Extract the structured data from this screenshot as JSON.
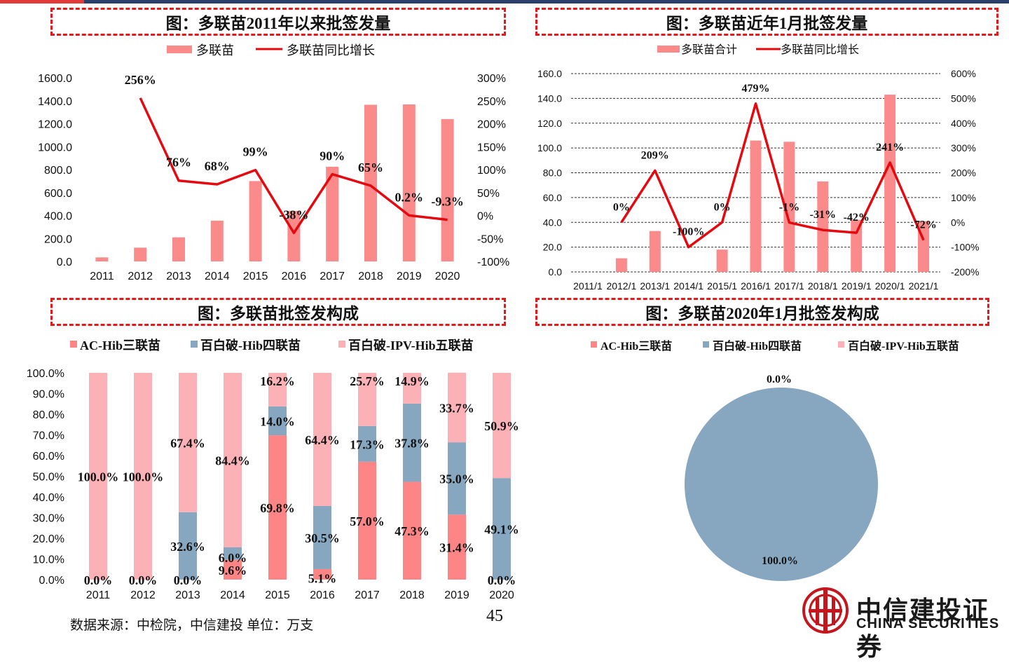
{
  "titles": {
    "c1": "图：多联苗2011年以来批签发量",
    "c2": "图：多联苗近年1月批签发量",
    "c3": "图：多联苗批签发构成",
    "c4": "图：多联苗2020年1月批签发构成"
  },
  "footer": {
    "source": "数据来源：中检院，中信建投 单位：万支",
    "page": "45",
    "logo_cn": "中信建投证券",
    "logo_en": "CHINA SECURITIES"
  },
  "colors": {
    "bar_pink": "#fb8a8a",
    "line_red": "#e5090f",
    "seg_ac": "#fe8585",
    "seg_dtap_hib4": "#86a7bf",
    "seg_ipv5": "#fcb1b7",
    "title_border": "#e3191c"
  },
  "chart_data": [
    {
      "type": "bar",
      "title": "图：多联苗2011年以来批签发量",
      "categories": [
        "2011",
        "2012",
        "2013",
        "2014",
        "2015",
        "2016",
        "2017",
        "2018",
        "2019",
        "2020"
      ],
      "series": [
        {
          "name": "多联苗",
          "kind": "bar",
          "axis": "left",
          "values": [
            35,
            120,
            210,
            355,
            700,
            440,
            825,
            1365,
            1368,
            1240
          ]
        },
        {
          "name": "多联苗同比增长",
          "kind": "line",
          "axis": "right",
          "values": [
            null,
            256,
            76,
            68,
            99,
            -38,
            90,
            65,
            0.2,
            -9.3
          ],
          "labels": [
            "",
            "256%",
            "76%",
            "68%",
            "99%",
            "-38%",
            "90%",
            "65%",
            "0.2%",
            "-9.3%"
          ]
        }
      ],
      "left_ticks": [
        "0.0",
        "200.0",
        "400.0",
        "600.0",
        "800.0",
        "1000.0",
        "1200.0",
        "1400.0",
        "1600.0"
      ],
      "right_ticks": [
        "-100%",
        "-50%",
        "0%",
        "50%",
        "100%",
        "150%",
        "200%",
        "250%",
        "300%"
      ],
      "ylim": [
        0,
        1600
      ],
      "y2lim": [
        -100,
        300
      ],
      "legend": "top"
    },
    {
      "type": "bar",
      "title": "图：多联苗近年1月批签发量",
      "categories": [
        "2011/1",
        "2012/1",
        "2013/1",
        "2014/1",
        "2015/1",
        "2016/1",
        "2017/1",
        "2018/1",
        "2019/1",
        "2020/1",
        "2021/1"
      ],
      "series": [
        {
          "name": "多联苗合计",
          "kind": "bar",
          "axis": "left",
          "values": [
            0,
            11,
            33,
            0,
            18,
            106,
            105,
            73,
            42,
            143,
            41
          ]
        },
        {
          "name": "多联苗同比增长",
          "kind": "line",
          "axis": "right",
          "values": [
            null,
            0,
            209,
            -100,
            0,
            479,
            -1,
            -31,
            -42,
            241,
            -72
          ],
          "labels": [
            "",
            "0%",
            "209%",
            "-100%",
            "0%",
            "479%",
            "-1%",
            "-31%",
            "-42%",
            "241%",
            "-72%"
          ]
        }
      ],
      "left_ticks": [
        "0.0",
        "20.0",
        "40.0",
        "60.0",
        "80.0",
        "100.0",
        "120.0",
        "140.0",
        "160.0"
      ],
      "right_ticks": [
        "-200%",
        "-100%",
        "0%",
        "100%",
        "200%",
        "300%",
        "400%",
        "500%",
        "600%"
      ],
      "ylim": [
        0,
        160
      ],
      "y2lim": [
        -200,
        600
      ],
      "grid": true,
      "legend": "top"
    },
    {
      "type": "bar",
      "stacked": true,
      "title": "图：多联苗批签发构成",
      "categories": [
        "2011",
        "2012",
        "2013",
        "2014",
        "2015",
        "2016",
        "2017",
        "2018",
        "2019",
        "2020"
      ],
      "series": [
        {
          "name": "AC-Hib三联苗",
          "values": [
            0,
            0,
            0,
            9.6,
            69.8,
            5.1,
            57.0,
            47.3,
            31.4,
            0
          ],
          "labels": [
            "0.0%",
            "0.0%",
            "0.0%",
            "9.6%",
            "69.8%",
            "5.1%",
            "57.0%",
            "47.3%",
            "31.4%",
            "0.0%"
          ]
        },
        {
          "name": "百白破-Hib四联苗",
          "values": [
            0,
            0,
            32.6,
            6.0,
            14.0,
            30.5,
            17.3,
            37.8,
            35.0,
            49.1
          ],
          "labels": [
            "",
            "",
            "32.6%",
            "6.0%",
            "14.0%",
            "30.5%",
            "17.3%",
            "37.8%",
            "35.0%",
            "49.1%"
          ]
        },
        {
          "name": "百白破-IPV-Hib五联苗",
          "values": [
            100,
            100,
            67.4,
            84.4,
            16.2,
            64.4,
            25.7,
            14.9,
            33.7,
            50.9
          ],
          "labels": [
            "100.0%",
            "100.0%",
            "67.4%",
            "84.4%",
            "16.2%",
            "64.4%",
            "25.7%",
            "14.9%",
            "33.7%",
            "50.9%"
          ]
        }
      ],
      "ticks": [
        "0.0%",
        "10.0%",
        "20.0%",
        "30.0%",
        "40.0%",
        "50.0%",
        "60.0%",
        "70.0%",
        "80.0%",
        "90.0%",
        "100.0%"
      ],
      "ylim": [
        0,
        100
      ],
      "legend": "top"
    },
    {
      "type": "pie",
      "title": "图：多联苗2020年1月批签发构成",
      "legend_names": [
        "AC-Hib三联苗",
        "百白破-Hib四联苗",
        "百白破-IPV-Hib五联苗"
      ],
      "slices": [
        {
          "name": "百白破-Hib四联苗",
          "value": 100.0,
          "label": "100.0%"
        }
      ],
      "extra_label": "0.0%",
      "legend": "top"
    }
  ]
}
